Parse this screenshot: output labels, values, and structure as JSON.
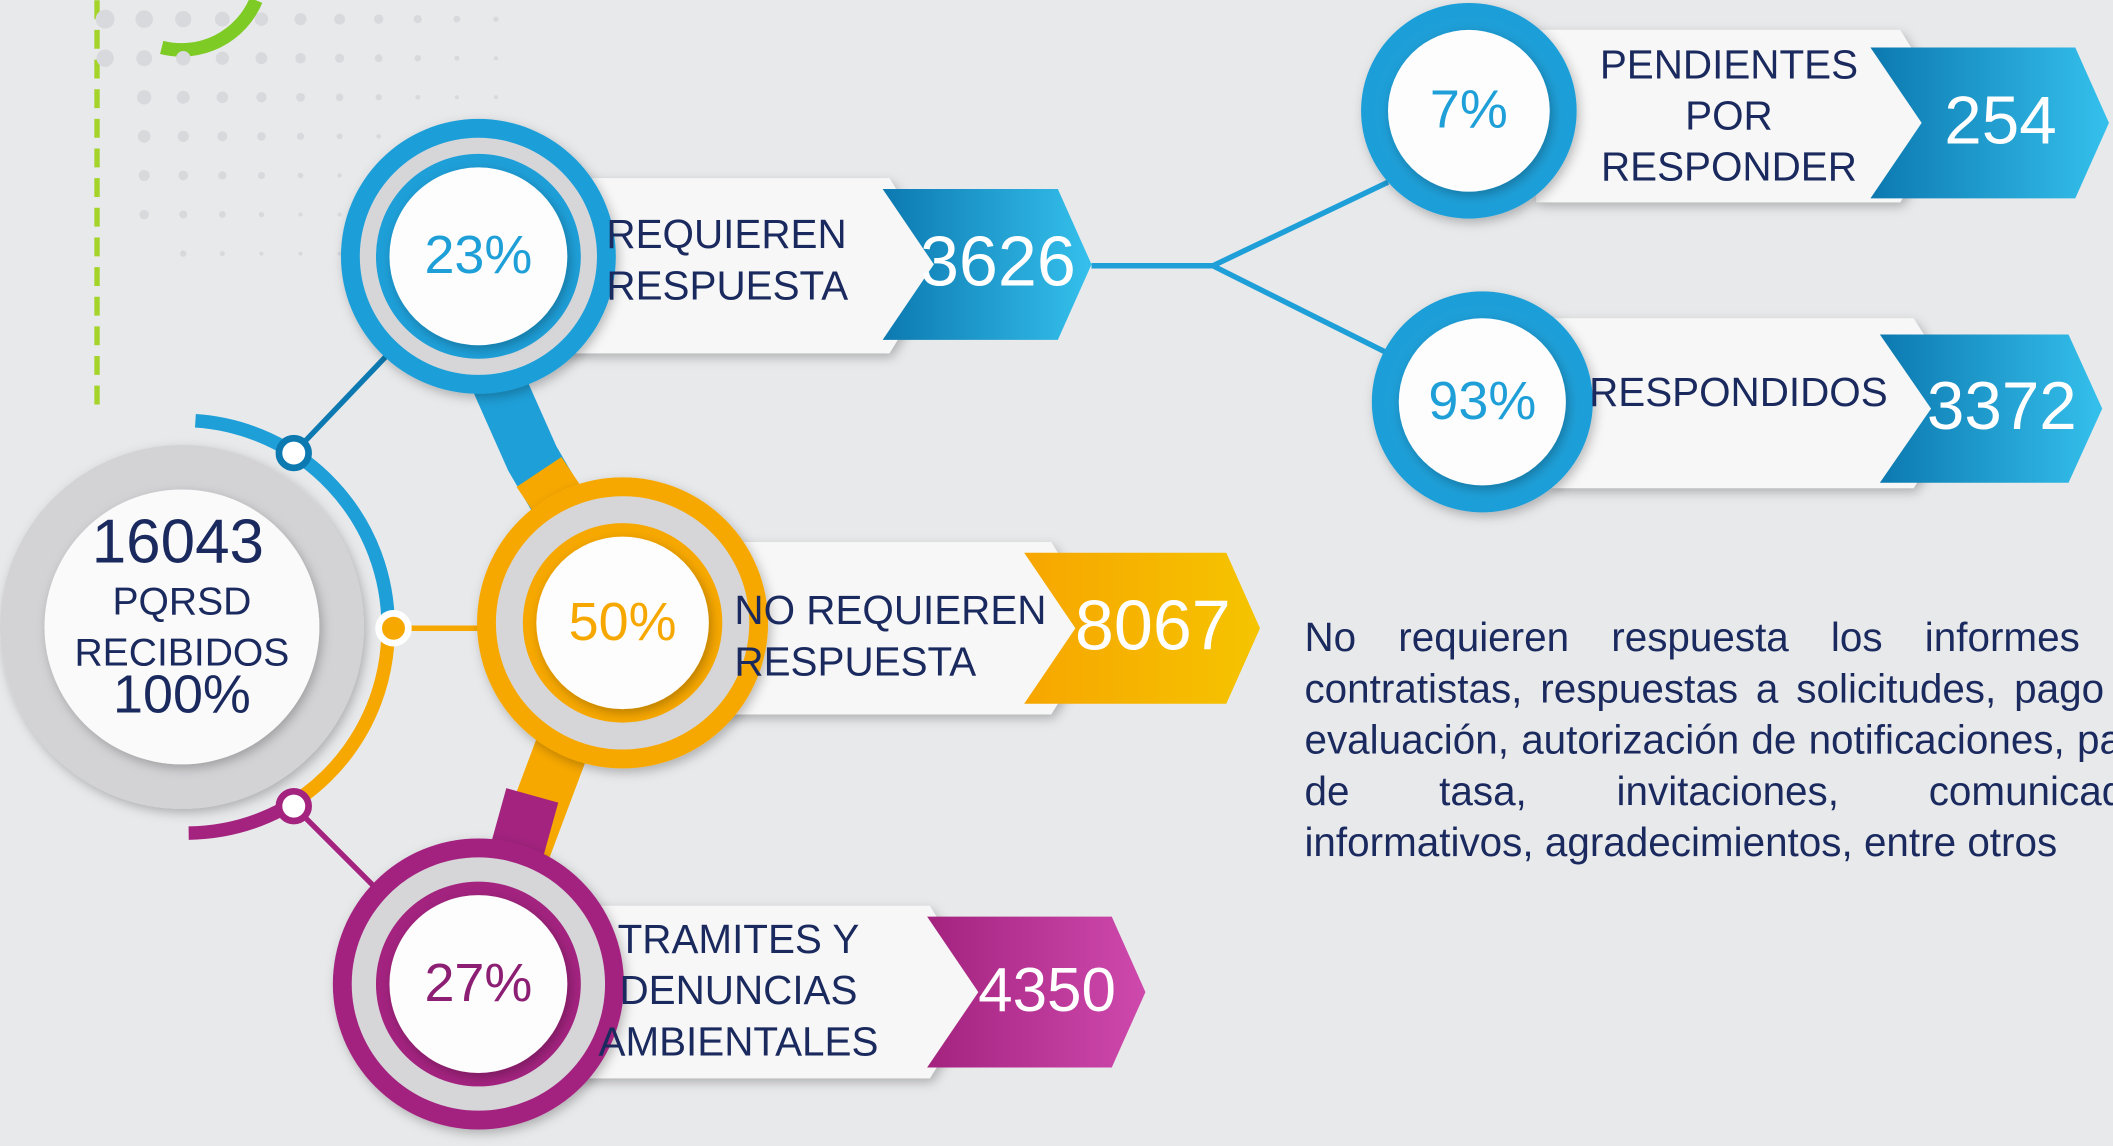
{
  "center": {
    "value": "16043",
    "label": "PQRSD",
    "sublabel": "RECIBIDOS",
    "percent": "100%"
  },
  "branches": [
    {
      "percent": "23%",
      "label_lines": [
        "REQUIEREN",
        "RESPUESTA"
      ],
      "value": "3626"
    },
    {
      "percent": "50%",
      "label_lines": [
        "NO REQUIEREN",
        "RESPUESTA"
      ],
      "value": "8067"
    },
    {
      "percent": "27%",
      "label_lines": [
        "TRAMITES  Y",
        "DENUNCIAS",
        "AMBIENTALES"
      ],
      "value": "4350"
    }
  ],
  "sub_branches": [
    {
      "percent": "7%",
      "label_lines": [
        "PENDIENTES",
        "POR",
        "RESPONDER"
      ],
      "value": "254"
    },
    {
      "percent": "93%",
      "label_lines": [
        "RESPONDIDOS"
      ],
      "value": "3372"
    }
  ],
  "note": "No requieren respuesta los informes de contratistas, respuestas a solicitudes, pago de evaluación, autorización de notificaciones, pago de tasa, invitaciones, comunicados informativos, agradecimientos, entre otros"
}
